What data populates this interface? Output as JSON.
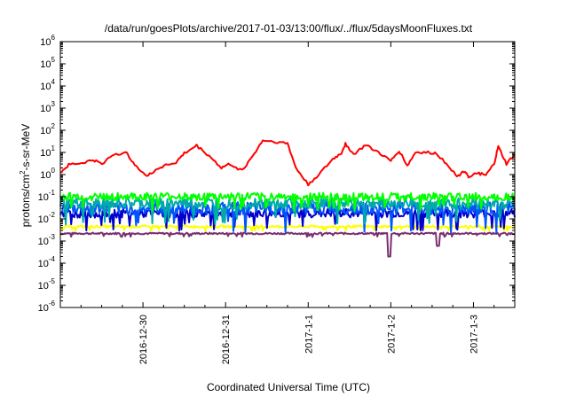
{
  "chart_data": {
    "type": "line",
    "title": "/data/run/goesPlots/archive/2017-01-03/13:00/flux/../flux/5daysMoonFluxes.txt",
    "xlabel": "Coordinated Universal Time (UTC)",
    "ylabel_base": "protons/cm",
    "ylabel_sup": "2",
    "ylabel_rest": "-s-sr-MeV",
    "y_scale": "log",
    "ylim": [
      1e-06,
      1000000.0
    ],
    "y_ticks": [
      {
        "base": "10",
        "exp": "-6",
        "value": 1e-06
      },
      {
        "base": "10",
        "exp": "-5",
        "value": 1e-05
      },
      {
        "base": "10",
        "exp": "-4",
        "value": 0.0001
      },
      {
        "base": "10",
        "exp": "-3",
        "value": 0.001
      },
      {
        "base": "10",
        "exp": "-2",
        "value": 0.01
      },
      {
        "base": "10",
        "exp": "-1",
        "value": 0.1
      },
      {
        "base": "10",
        "exp": "0",
        "value": 1
      },
      {
        "base": "10",
        "exp": "1",
        "value": 10
      },
      {
        "base": "10",
        "exp": "2",
        "value": 100
      },
      {
        "base": "10",
        "exp": "3",
        "value": 1000
      },
      {
        "base": "10",
        "exp": "4",
        "value": 10000
      },
      {
        "base": "10",
        "exp": "5",
        "value": 100000
      },
      {
        "base": "10",
        "exp": "6",
        "value": 1000000
      }
    ],
    "x_range_days": [
      -1.0,
      4.0
    ],
    "x_ticks": [
      {
        "label": "2016-12-30",
        "value": 0
      },
      {
        "label": "2016-12-31",
        "value": 1
      },
      {
        "label": "2017-1-1",
        "value": 2
      },
      {
        "label": "2017-1-2",
        "value": 3
      },
      {
        "label": "2017-1-3",
        "value": 4
      }
    ],
    "grid": false,
    "legend": "none",
    "series": [
      {
        "color": "#ff0000",
        "points": [
          [
            -1.0,
            1.2
          ],
          [
            -0.9,
            2.8
          ],
          [
            -0.75,
            3.2
          ],
          [
            -0.6,
            4.5
          ],
          [
            -0.5,
            3.0
          ],
          [
            -0.35,
            8.5
          ],
          [
            -0.2,
            9.0
          ],
          [
            -0.1,
            3.0
          ],
          [
            0.05,
            0.8
          ],
          [
            0.15,
            1.6
          ],
          [
            0.25,
            2.5
          ],
          [
            0.4,
            3.5
          ],
          [
            0.5,
            9.0
          ],
          [
            0.65,
            20
          ],
          [
            0.8,
            7.0
          ],
          [
            0.95,
            2.0
          ],
          [
            1.05,
            3.0
          ],
          [
            1.2,
            1.5
          ],
          [
            1.35,
            9.0
          ],
          [
            1.45,
            35
          ],
          [
            1.6,
            30
          ],
          [
            1.75,
            25
          ],
          [
            1.85,
            2.0
          ],
          [
            2.0,
            0.35
          ],
          [
            2.15,
            1.2
          ],
          [
            2.3,
            5.0
          ],
          [
            2.4,
            9.0
          ],
          [
            2.45,
            25
          ],
          [
            2.55,
            8.0
          ],
          [
            2.7,
            22
          ],
          [
            2.85,
            10
          ],
          [
            3.0,
            4.0
          ],
          [
            3.1,
            12
          ],
          [
            3.2,
            2.5
          ],
          [
            3.3,
            10
          ],
          [
            3.45,
            10
          ],
          [
            3.55,
            9.0
          ],
          [
            3.7,
            2.5
          ],
          [
            3.8,
            0.8
          ],
          [
            3.9,
            1.5
          ],
          [
            3.95,
            0.7
          ],
          [
            4.05,
            1.2
          ],
          [
            4.15,
            0.9
          ],
          [
            4.25,
            3.0
          ],
          [
            4.3,
            18
          ],
          [
            4.4,
            3.0
          ],
          [
            4.5,
            8.0
          ]
        ]
      },
      {
        "color": "#00ff00",
        "base": 0.1,
        "jitter": 0.35
      },
      {
        "color": "#00aaaa",
        "base": 0.05,
        "jitter": 0.5
      },
      {
        "color": "#0055ff",
        "base": 0.03,
        "jitter": 0.55
      },
      {
        "color": "#0000cc",
        "base": 0.018,
        "jitter": 0.4
      },
      {
        "color": "#ffff00",
        "base": 0.0045,
        "jitter": 0.1
      },
      {
        "color": "#7a3070",
        "base": 0.0022,
        "jitter": 0.08
      }
    ]
  }
}
